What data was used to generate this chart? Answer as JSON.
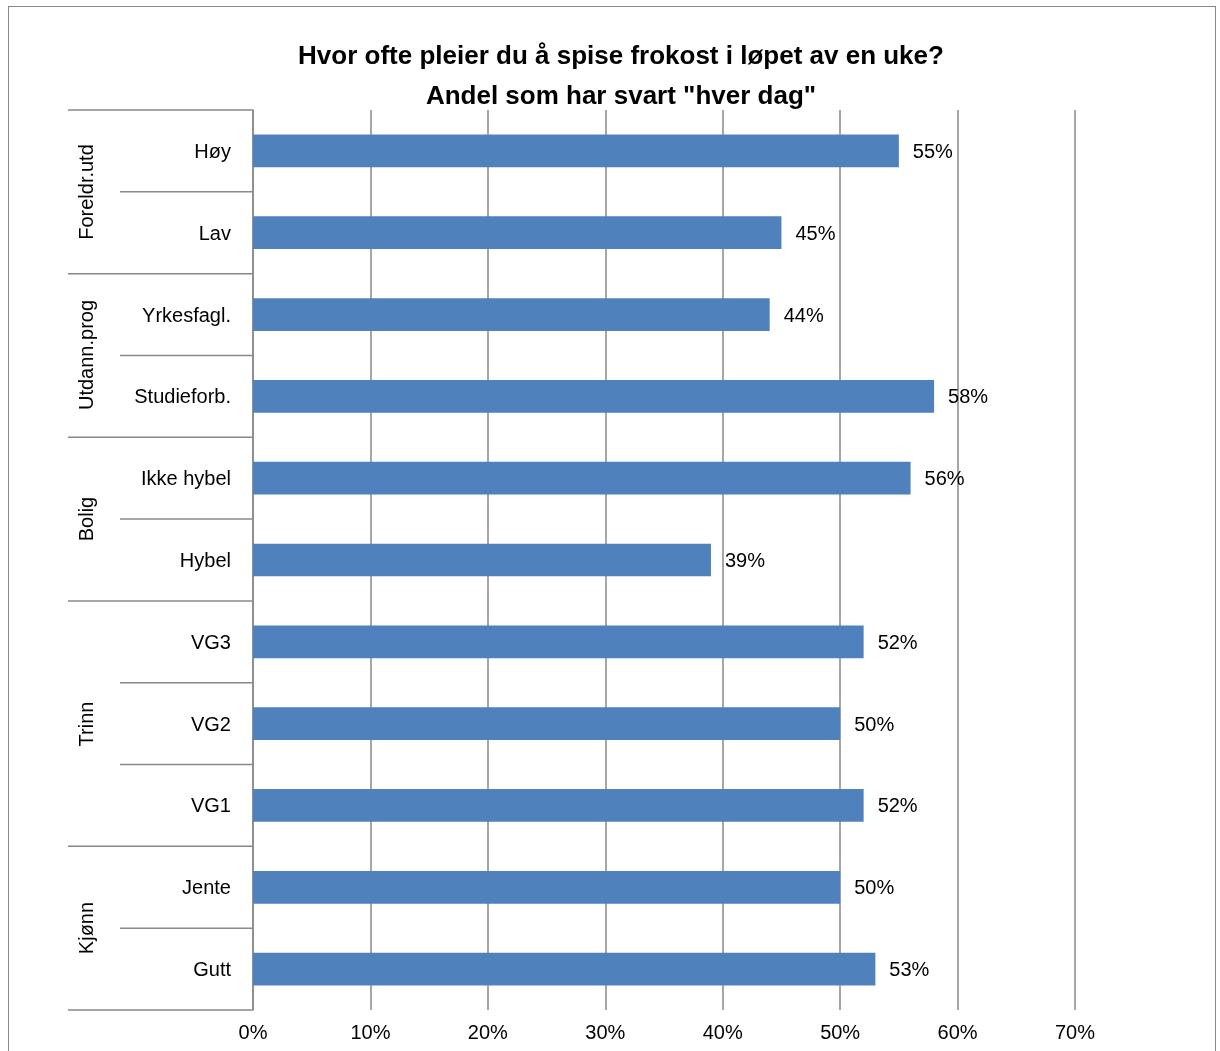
{
  "chart_data": {
    "type": "bar",
    "orientation": "horizontal",
    "title": "Hvor ofte pleier du å spise frokost i løpet av en uke?\nAndel som har svart \"hver dag\"",
    "categories": [
      "Høy",
      "Lav",
      "Yrkesfagl.",
      "Studieforb.",
      "Ikke hybel",
      "Hybel",
      "VG3",
      "VG2",
      "VG1",
      "Jente",
      "Gutt"
    ],
    "values": [
      55,
      45,
      44,
      58,
      56,
      39,
      52,
      50,
      52,
      50,
      53
    ],
    "value_labels": [
      "55%",
      "45%",
      "44%",
      "58%",
      "56%",
      "39%",
      "52%",
      "50%",
      "52%",
      "50%",
      "53%"
    ],
    "color": "#4f81bd",
    "xlim": [
      0,
      70
    ],
    "xticks": [
      {
        "value": 0,
        "label": "0%"
      },
      {
        "value": 10,
        "label": "10%"
      },
      {
        "value": 20,
        "label": "20%"
      },
      {
        "value": 30,
        "label": "30%"
      },
      {
        "value": 40,
        "label": "40%"
      },
      {
        "value": 50,
        "label": "50%"
      },
      {
        "value": 60,
        "label": "60%"
      },
      {
        "value": 70,
        "label": "70%"
      }
    ],
    "grid": "x",
    "annotations": [
      "Foreldr.utd",
      "Utdann.prog",
      "Bolig",
      "Trinn",
      "Kjønn"
    ]
  }
}
